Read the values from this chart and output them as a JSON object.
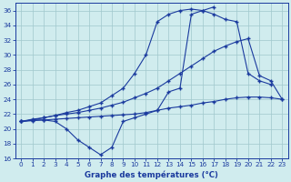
{
  "xlabel": "Graphe des températures (°C)",
  "ylim": [
    16,
    37
  ],
  "yticks": [
    16,
    18,
    20,
    22,
    24,
    26,
    28,
    30,
    32,
    34,
    36
  ],
  "line_color": "#1a3a9e",
  "bg_color": "#d0ecee",
  "grid_color": "#a0c8cc",
  "line1_x": [
    0,
    1,
    2,
    3,
    4,
    5,
    6,
    7,
    8,
    9,
    10,
    11,
    12,
    13,
    14,
    15,
    16,
    17
  ],
  "line1_y": [
    21.0,
    21.2,
    21.2,
    21.0,
    20.0,
    18.5,
    17.5,
    16.5,
    17.5,
    21.0,
    21.5,
    22.0,
    22.5,
    25.0,
    25.5,
    35.5,
    36.0,
    36.5
  ],
  "line2_x": [
    0,
    1,
    2,
    3,
    4,
    5,
    6,
    7,
    8,
    9,
    10,
    11,
    12,
    13,
    14,
    15,
    16,
    17,
    18,
    19,
    20,
    21,
    22,
    23
  ],
  "line2_y": [
    21.0,
    21.1,
    21.2,
    21.3,
    21.4,
    21.5,
    21.6,
    21.7,
    21.8,
    21.9,
    22.0,
    22.2,
    22.5,
    22.8,
    23.0,
    23.2,
    23.5,
    23.7,
    24.0,
    24.2,
    24.3,
    24.3,
    24.2,
    24.0
  ],
  "line3_x": [
    0,
    1,
    2,
    3,
    4,
    5,
    6,
    7,
    8,
    9,
    10,
    11,
    12,
    13,
    14,
    15,
    16,
    17,
    18,
    19,
    20,
    21,
    22,
    23
  ],
  "line3_y": [
    21.0,
    21.2,
    21.5,
    21.8,
    22.0,
    22.2,
    22.5,
    22.8,
    23.2,
    23.6,
    24.2,
    24.8,
    25.5,
    26.5,
    27.5,
    28.5,
    29.5,
    30.5,
    31.2,
    31.8,
    32.2,
    27.2,
    26.5,
    24.0
  ],
  "line4_x": [
    0,
    1,
    2,
    3,
    4,
    5,
    6,
    7,
    8,
    9,
    10,
    11,
    12,
    13,
    14,
    15,
    16,
    17,
    18,
    19,
    20,
    21,
    22
  ],
  "line4_y": [
    21.0,
    21.3,
    21.5,
    21.8,
    22.2,
    22.5,
    23.0,
    23.5,
    24.5,
    25.5,
    27.5,
    30.0,
    34.5,
    35.5,
    36.0,
    36.2,
    36.0,
    35.5,
    34.8,
    34.5,
    27.5,
    26.5,
    26.0
  ]
}
